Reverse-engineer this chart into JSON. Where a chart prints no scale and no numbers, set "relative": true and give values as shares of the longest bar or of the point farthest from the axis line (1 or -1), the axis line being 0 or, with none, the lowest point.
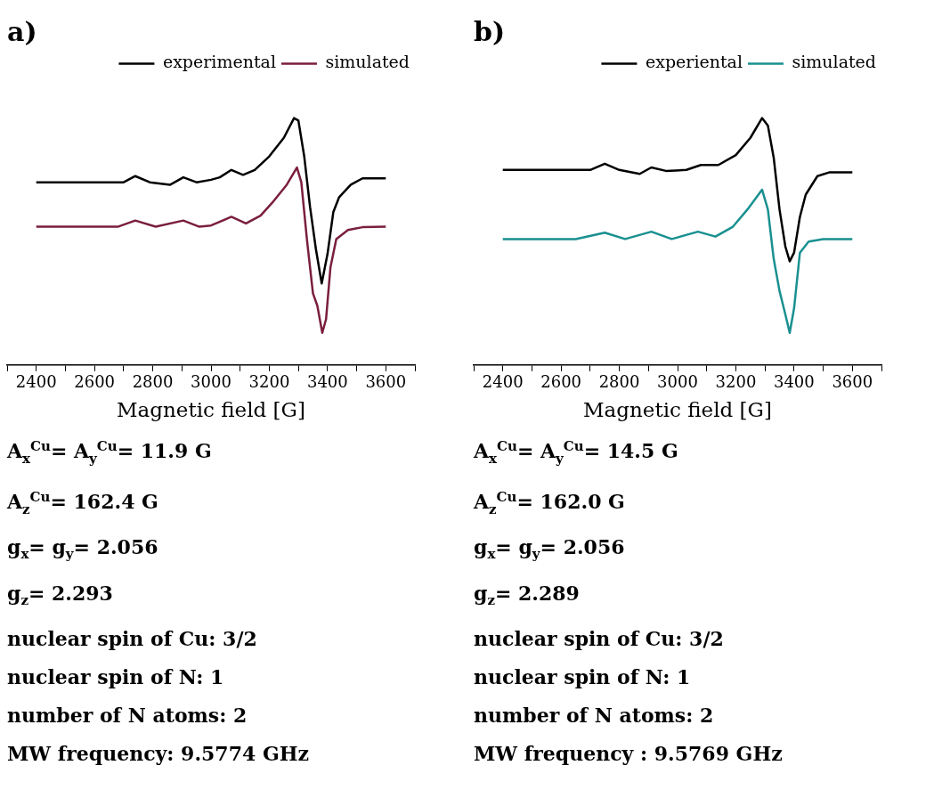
{
  "chart_data": [
    {
      "type": "line",
      "title": "a)",
      "xlabel": "Magnetic field [G]",
      "relative": true,
      "legend": "top right",
      "grid": false,
      "tick_labels": "x",
      "marker": "none",
      "line_style": "solid",
      "xlim": [
        2300,
        3700
      ],
      "xticks": [
        {
          "value": 2300,
          "label": null
        },
        2400,
        {
          "value": 2500,
          "label": null
        },
        2600,
        {
          "value": 2700,
          "label": null
        },
        2800,
        {
          "value": 2900,
          "label": null
        },
        3000,
        {
          "value": 3100,
          "label": null
        },
        3200,
        {
          "value": 3300,
          "label": null
        },
        3400,
        {
          "value": 3500,
          "label": null
        },
        3600,
        {
          "value": 3700,
          "label": null
        }
      ],
      "series": [
        {
          "name": "experimental",
          "color": "#000000",
          "x": [
            2400,
            2700,
            2740,
            2790,
            2860,
            2905,
            2950,
            3000,
            3030,
            3070,
            3110,
            3150,
            3200,
            3250,
            3285,
            3300,
            3320,
            3340,
            3360,
            3380,
            3400,
            3420,
            3440,
            3480,
            3520,
            3600
          ],
          "values": [
            0.74,
            0.74,
            0.765,
            0.74,
            0.73,
            0.76,
            0.74,
            0.75,
            0.76,
            0.79,
            0.77,
            0.79,
            0.845,
            0.92,
            1.0,
            0.99,
            0.845,
            0.64,
            0.47,
            0.33,
            0.45,
            0.62,
            0.68,
            0.73,
            0.756,
            0.756
          ]
        },
        {
          "name": "simulated",
          "color": "#7a1f3d",
          "x": [
            2400,
            2680,
            2740,
            2810,
            2905,
            2960,
            3000,
            3070,
            3120,
            3170,
            3210,
            3260,
            3295,
            3310,
            3330,
            3350,
            3365,
            3382,
            3395,
            3410,
            3430,
            3470,
            3520,
            3600
          ],
          "values": [
            0.56,
            0.56,
            0.585,
            0.56,
            0.585,
            0.56,
            0.565,
            0.6,
            0.573,
            0.605,
            0.657,
            0.73,
            0.8,
            0.74,
            0.5,
            0.29,
            0.24,
            0.13,
            0.186,
            0.395,
            0.51,
            0.547,
            0.558,
            0.56
          ]
        }
      ],
      "annotations": [
        "A$_{x}$$^{Cu}$= A$_{y}$$^{Cu}$= 11.9 G",
        "A$_{z}$$^{Cu}$= 162.4 G",
        "g$_{x}$= g$_{y}$= 2.056",
        "g$_{z}$= 2.293",
        "nuclear spin of Cu: 3/2",
        "nuclear spin of  N: 1",
        "number of N atoms: 2",
        "MW frequency: 9.5774 GHz"
      ]
    },
    {
      "type": "line",
      "title": "b)",
      "xlabel": "Magnetic field [G]",
      "relative": true,
      "legend": "top right",
      "grid": false,
      "tick_labels": "x",
      "marker": "none",
      "line_style": "solid",
      "xlim": [
        2300,
        3700
      ],
      "xticks": [
        {
          "value": 2300,
          "label": null
        },
        2400,
        {
          "value": 2500,
          "label": null
        },
        2600,
        {
          "value": 2700,
          "label": null
        },
        2800,
        {
          "value": 2900,
          "label": null
        },
        3000,
        {
          "value": 3100,
          "label": null
        },
        3200,
        {
          "value": 3300,
          "label": null
        },
        3400,
        {
          "value": 3500,
          "label": null
        },
        3600,
        {
          "value": 3700,
          "label": null
        }
      ],
      "series": [
        {
          "name": "experiental",
          "color": "#000000",
          "x": [
            2400,
            2700,
            2750,
            2800,
            2870,
            2910,
            2960,
            3030,
            3080,
            3140,
            3200,
            3250,
            3290,
            3310,
            3330,
            3350,
            3370,
            3385,
            3400,
            3420,
            3440,
            3480,
            3520,
            3600
          ],
          "values": [
            0.79,
            0.79,
            0.815,
            0.79,
            0.774,
            0.8,
            0.786,
            0.79,
            0.81,
            0.81,
            0.85,
            0.92,
            1.0,
            0.97,
            0.84,
            0.63,
            0.48,
            0.42,
            0.455,
            0.6,
            0.69,
            0.765,
            0.78,
            0.78
          ]
        },
        {
          "name": "simulated",
          "color": "#1a9090",
          "x": [
            2400,
            2650,
            2750,
            2820,
            2910,
            2980,
            3070,
            3130,
            3190,
            3240,
            3290,
            3310,
            3330,
            3350,
            3370,
            3385,
            3400,
            3420,
            3450,
            3500,
            3600
          ],
          "values": [
            0.51,
            0.51,
            0.536,
            0.51,
            0.54,
            0.51,
            0.54,
            0.52,
            0.56,
            0.63,
            0.71,
            0.63,
            0.43,
            0.3,
            0.205,
            0.13,
            0.23,
            0.455,
            0.5,
            0.51,
            0.51
          ]
        }
      ],
      "annotations": [
        "A$_{x}$$^{Cu}$= A$_{y}$$^{Cu}$= 14.5 G",
        "A$_{z}$$^{Cu}$= 162.0 G",
        "g$_{x}$= g$_{y}$= 2.056",
        "g$_{z}$= 2.289",
        "nuclear spin of Cu: 3/2",
        "nuclear spin of N: 1",
        "number of N atoms: 2",
        "MW frequency : 9.5769 GHz"
      ]
    }
  ]
}
